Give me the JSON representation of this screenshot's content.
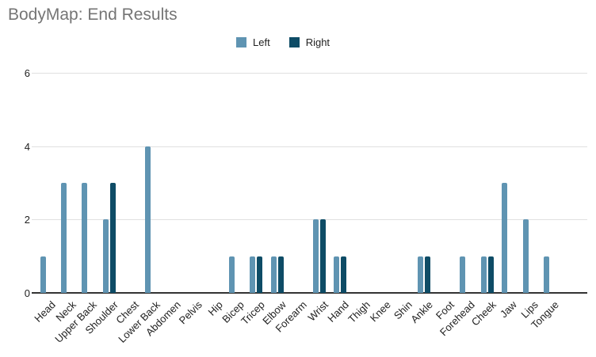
{
  "page": {
    "title": "BodyMap: End Results"
  },
  "colors": {
    "background": "#ffffff",
    "title_text": "#757575",
    "axis_text": "#222222",
    "gridline": "#e0e0e0",
    "baseline": "#333333",
    "left_series": "#5f94b2",
    "right_series": "#0e4c66"
  },
  "chart_data": {
    "type": "bar",
    "title": "BodyMap: End Results",
    "categories": [
      "Head",
      "Neck",
      "Upper Back",
      "Shoulder",
      "Chest",
      "Lower Back",
      "Abdomen",
      "Pelvis",
      "Hip",
      "Bicep",
      "Tricep",
      "Elbow",
      "Forearm",
      "Wrist",
      "Hand",
      "Thigh",
      "Knee",
      "Shin",
      "Ankle",
      "Foot",
      "Forehead",
      "Cheek",
      "Jaw",
      "Lips",
      "Tongue"
    ],
    "series": [
      {
        "name": "Left",
        "color": "#5f94b2",
        "values": [
          1,
          3,
          3,
          2,
          0,
          4,
          0,
          0,
          0,
          1,
          1,
          1,
          0,
          2,
          1,
          0,
          0,
          0,
          1,
          0,
          1,
          1,
          3,
          2,
          1
        ]
      },
      {
        "name": "Right",
        "color": "#0e4c66",
        "values": [
          0,
          0,
          0,
          3,
          0,
          0,
          0,
          0,
          0,
          0,
          1,
          1,
          0,
          2,
          1,
          0,
          0,
          0,
          1,
          0,
          0,
          1,
          0,
          0,
          0
        ]
      }
    ],
    "yticks": [
      0,
      2,
      4,
      6
    ],
    "ylim": [
      0,
      6
    ],
    "xlabel": "",
    "ylabel": "",
    "grid": true,
    "legend_position": "top"
  }
}
